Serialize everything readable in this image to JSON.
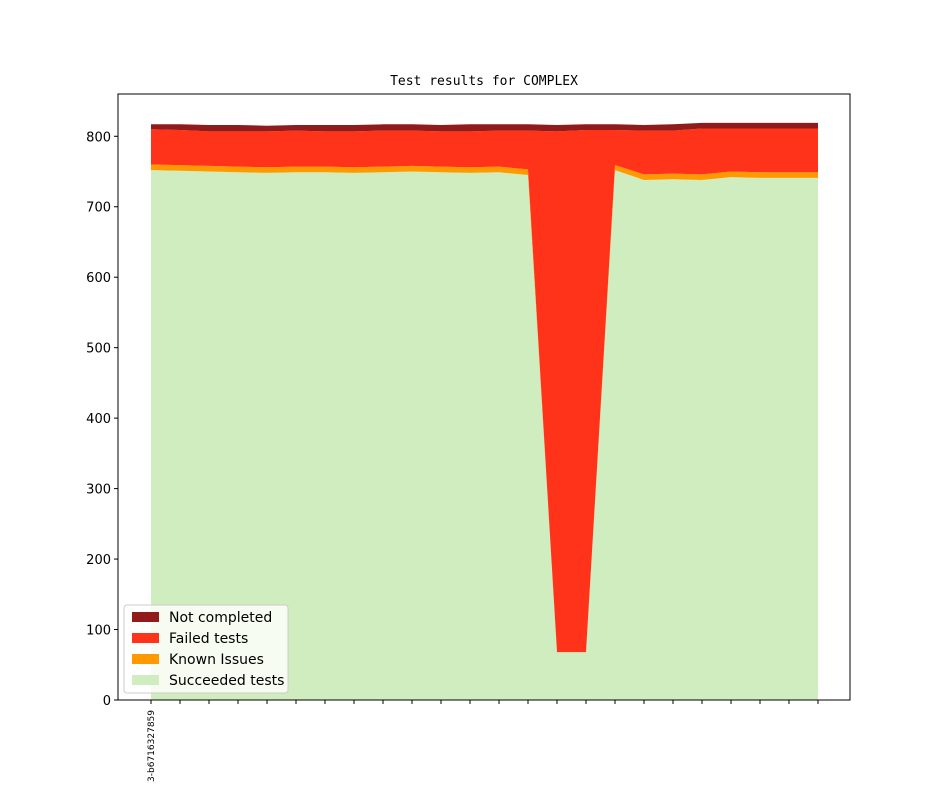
{
  "chart_data": {
    "type": "area",
    "stacked": true,
    "title": "Test results for COMPLEX",
    "xlabel": "",
    "ylabel": "",
    "ylim": [
      0,
      860
    ],
    "yticks": [
      0,
      100,
      200,
      300,
      400,
      500,
      600,
      700,
      800
    ],
    "x_tick_labels": [
      "3-b6716327859"
    ],
    "grid": false,
    "legend_position": "lower-left",
    "series": [
      {
        "name": "Succeeded tests",
        "color": "#cfedbf",
        "values": [
          752,
          751,
          750,
          749,
          748,
          749,
          749,
          748,
          749,
          750,
          749,
          748,
          749,
          745,
          68,
          68,
          752,
          738,
          739,
          738,
          742,
          741,
          741,
          741
        ]
      },
      {
        "name": "Known Issues",
        "color": "#ff9900",
        "values": [
          8,
          8,
          8,
          8,
          8,
          8,
          8,
          8,
          8,
          8,
          8,
          8,
          8,
          8,
          0,
          0,
          7,
          8,
          8,
          8,
          8,
          8,
          8,
          8
        ]
      },
      {
        "name": "Failed tests",
        "color": "#ff3319",
        "values": [
          50,
          50,
          49,
          50,
          51,
          51,
          50,
          51,
          51,
          50,
          50,
          51,
          51,
          55,
          739,
          741,
          50,
          62,
          61,
          65,
          61,
          62,
          62,
          62
        ]
      },
      {
        "name": "Not completed",
        "color": "#911a1a",
        "values": [
          7,
          8,
          9,
          9,
          8,
          8,
          9,
          9,
          9,
          9,
          9,
          10,
          9,
          9,
          9,
          8,
          8,
          8,
          9,
          8,
          8,
          8,
          8,
          8
        ]
      }
    ]
  }
}
